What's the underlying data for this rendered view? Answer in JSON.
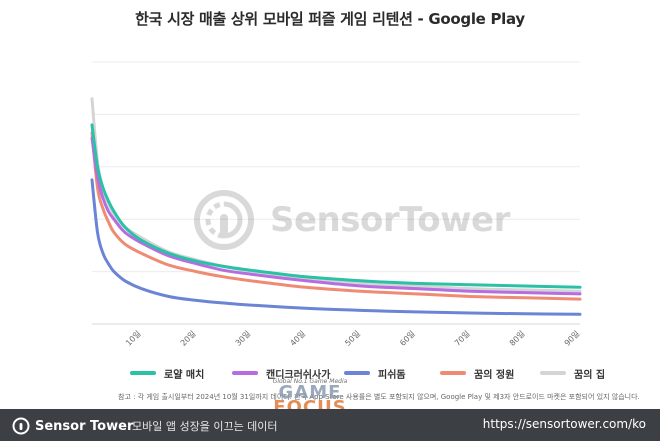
{
  "chart_data": {
    "type": "line",
    "title": "한국 시장 매출 상위 모바일 퍼즐 게임 리텐션 - Google Play",
    "xlabel": "",
    "ylabel": "",
    "x_tick_labels": [
      "10일",
      "20일",
      "30일",
      "40일",
      "50일",
      "60일",
      "70일",
      "80일",
      "90일"
    ],
    "x_ticks": [
      10,
      20,
      30,
      40,
      50,
      60,
      70,
      80,
      90
    ],
    "xlim": [
      1,
      90
    ],
    "ylim": [
      0,
      100
    ],
    "grid": true,
    "legend_position": "bottom",
    "x": [
      1,
      2,
      3,
      4,
      5,
      7,
      10,
      15,
      20,
      25,
      30,
      40,
      50,
      60,
      70,
      80,
      90
    ],
    "series": [
      {
        "name": "로얄 매치",
        "color": "#2bc1a6",
        "values": [
          76,
          60,
          52,
          47,
          43,
          37,
          32,
          27,
          24,
          22,
          20.5,
          18,
          16.5,
          15.5,
          15,
          14.5,
          14
        ]
      },
      {
        "name": "캔디크러쉬사가",
        "color": "#b56de0",
        "values": [
          71,
          56,
          48,
          43,
          40,
          35,
          31,
          26,
          23,
          20.5,
          19,
          16.5,
          14.5,
          13.5,
          12.5,
          12,
          11.5
        ]
      },
      {
        "name": "피쉬돔",
        "color": "#6b84d6",
        "values": [
          55,
          35,
          27,
          23,
          20,
          16.5,
          13.5,
          10.5,
          9,
          8,
          7.2,
          6,
          5.2,
          4.6,
          4.2,
          3.9,
          3.7
        ]
      },
      {
        "name": "꿈의 정원",
        "color": "#ef8a73",
        "values": [
          73,
          52,
          44,
          39,
          35,
          30.5,
          27,
          22.5,
          20,
          18,
          16.5,
          14,
          12.5,
          11.5,
          10.5,
          10,
          9.5
        ]
      },
      {
        "name": "꿈의 집",
        "color": "#d4d4d4",
        "values": [
          86,
          62,
          52,
          46,
          42,
          37,
          33,
          27.5,
          24.5,
          22,
          20,
          17.5,
          15.5,
          14.5,
          13.5,
          13,
          12.5
        ]
      }
    ]
  },
  "note": "참고 : 각 게임 출시일부터 2024년 10월 31일까지 데이터. 한국 App Store 사용률은 별도 포함되지 않으며, Google Play 및 제3자 안드로이드 마켓은 포함되어 있지 않습니다.",
  "watermark": {
    "brand": "SensorTower"
  },
  "overlay_logo": {
    "small": "Global No.1 Game Media",
    "line1": "GAME",
    "line2": "FOCUS"
  },
  "footer": {
    "brand": "Sensor Tower",
    "tagline": "모바일 앱 성장을 이끄는 데이터",
    "url": "https://sensortower.com/ko"
  }
}
